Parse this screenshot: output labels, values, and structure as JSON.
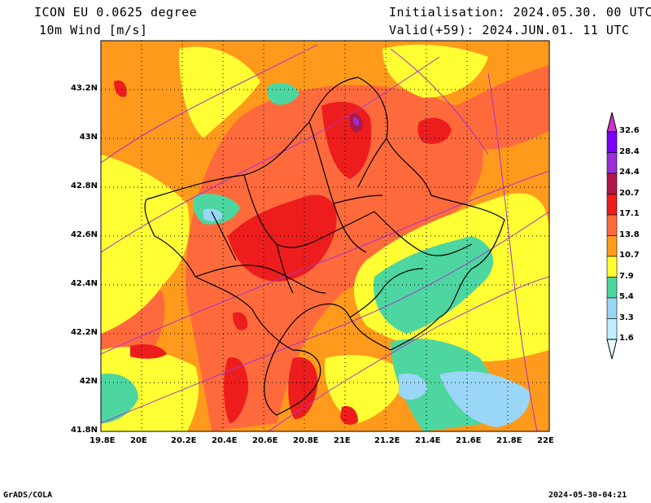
{
  "header": {
    "model": "ICON EU 0.0625 degree",
    "variable": "10m Wind [m/s]",
    "initialisation": "Initialisation: 2024.05.30. 00 UTC",
    "valid": "Valid(+59): 2024.JUN.01. 11 UTC"
  },
  "map": {
    "lon_range": [
      19.8,
      22.0
    ],
    "lat_range": [
      41.8,
      43.4
    ],
    "lon_ticks": [
      "19.8E",
      "20E",
      "20.2E",
      "20.4E",
      "20.6E",
      "20.8E",
      "21E",
      "21.2E",
      "21.4E",
      "21.6E",
      "21.8E",
      "22E"
    ],
    "lat_ticks": [
      "43.2N",
      "43N",
      "42.8N",
      "42.6N",
      "42.4N",
      "42.2N",
      "42N",
      "41.8N"
    ],
    "grid": true
  },
  "legend": {
    "levels": [
      "1.6",
      "3.3",
      "5.4",
      "7.9",
      "10.7",
      "13.8",
      "17.1",
      "20.7",
      "24.4",
      "28.4",
      "32.6"
    ],
    "colors": [
      "#e6fbff",
      "#bfeeff",
      "#9ad6f5",
      "#4dd6a0",
      "#ffff33",
      "#ff9a1c",
      "#ff6a3c",
      "#ee1d1d",
      "#b01848",
      "#9a30d8",
      "#7a00ff",
      "#cc33cc"
    ]
  },
  "footer": {
    "left": "GrADS/COLA",
    "right": "2024-05-30-04:21"
  },
  "colors": {
    "background_field": "#ff9a1c",
    "streamline": "#aa33cc",
    "border": "#000000"
  }
}
